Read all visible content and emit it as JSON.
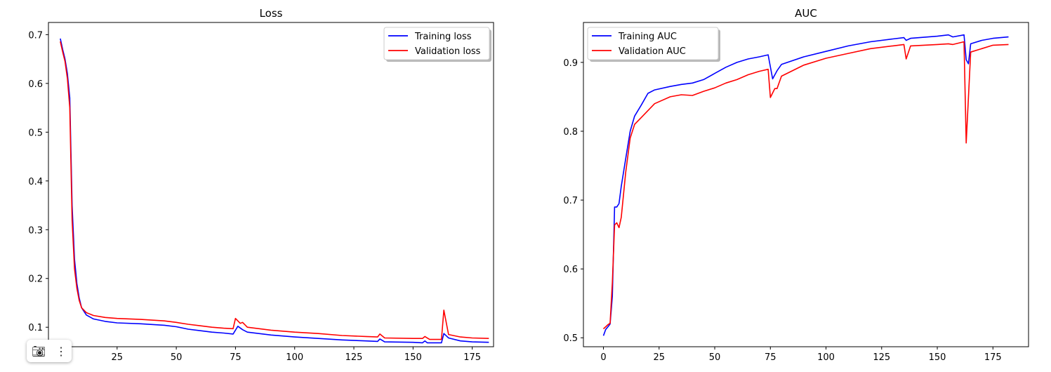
{
  "chart_data": [
    {
      "type": "line",
      "title": "Loss",
      "xlabel": "",
      "ylabel": "",
      "xlim": [
        -4,
        184
      ],
      "ylim": [
        0.06,
        0.725
      ],
      "xticks": [
        0,
        25,
        50,
        75,
        100,
        125,
        150,
        175
      ],
      "yticks": [
        0.1,
        0.2,
        0.3,
        0.4,
        0.5,
        0.6,
        0.7
      ],
      "legend_position": "top-right",
      "series": [
        {
          "name": "Training loss",
          "color": "#0000ff",
          "points": [
            [
              1,
              0.692
            ],
            [
              2,
              0.67
            ],
            [
              3,
              0.65
            ],
            [
              4,
              0.62
            ],
            [
              5,
              0.57
            ],
            [
              6,
              0.35
            ],
            [
              7,
              0.24
            ],
            [
              8,
              0.19
            ],
            [
              9,
              0.16
            ],
            [
              10,
              0.14
            ],
            [
              12,
              0.125
            ],
            [
              15,
              0.117
            ],
            [
              20,
              0.112
            ],
            [
              25,
              0.109
            ],
            [
              35,
              0.107
            ],
            [
              45,
              0.104
            ],
            [
              50,
              0.101
            ],
            [
              55,
              0.096
            ],
            [
              60,
              0.093
            ],
            [
              65,
              0.09
            ],
            [
              70,
              0.088
            ],
            [
              74,
              0.086
            ],
            [
              76,
              0.102
            ],
            [
              78,
              0.095
            ],
            [
              80,
              0.09
            ],
            [
              90,
              0.084
            ],
            [
              100,
              0.08
            ],
            [
              110,
              0.077
            ],
            [
              120,
              0.074
            ],
            [
              130,
              0.072
            ],
            [
              135,
              0.071
            ],
            [
              136,
              0.076
            ],
            [
              138,
              0.07
            ],
            [
              150,
              0.069
            ],
            [
              154,
              0.068
            ],
            [
              155,
              0.072
            ],
            [
              156,
              0.068
            ],
            [
              162,
              0.068
            ],
            [
              163,
              0.087
            ],
            [
              165,
              0.078
            ],
            [
              170,
              0.072
            ],
            [
              175,
              0.07
            ],
            [
              182,
              0.069
            ]
          ]
        },
        {
          "name": "Validation loss",
          "color": "#ff0000",
          "points": [
            [
              1,
              0.686
            ],
            [
              2,
              0.665
            ],
            [
              3,
              0.645
            ],
            [
              4,
              0.61
            ],
            [
              5,
              0.55
            ],
            [
              6,
              0.32
            ],
            [
              7,
              0.22
            ],
            [
              8,
              0.18
            ],
            [
              9,
              0.155
            ],
            [
              10,
              0.14
            ],
            [
              12,
              0.13
            ],
            [
              15,
              0.124
            ],
            [
              20,
              0.12
            ],
            [
              25,
              0.118
            ],
            [
              35,
              0.116
            ],
            [
              45,
              0.113
            ],
            [
              50,
              0.11
            ],
            [
              55,
              0.106
            ],
            [
              60,
              0.103
            ],
            [
              65,
              0.1
            ],
            [
              70,
              0.098
            ],
            [
              74,
              0.097
            ],
            [
              75,
              0.118
            ],
            [
              77,
              0.108
            ],
            [
              78,
              0.11
            ],
            [
              80,
              0.1
            ],
            [
              90,
              0.094
            ],
            [
              100,
              0.09
            ],
            [
              110,
              0.087
            ],
            [
              120,
              0.083
            ],
            [
              130,
              0.081
            ],
            [
              135,
              0.08
            ],
            [
              136,
              0.086
            ],
            [
              138,
              0.078
            ],
            [
              150,
              0.077
            ],
            [
              154,
              0.077
            ],
            [
              155,
              0.081
            ],
            [
              157,
              0.075
            ],
            [
              162,
              0.075
            ],
            [
              163,
              0.135
            ],
            [
              165,
              0.085
            ],
            [
              170,
              0.08
            ],
            [
              175,
              0.078
            ],
            [
              182,
              0.077
            ]
          ]
        }
      ]
    },
    {
      "type": "line",
      "title": "AUC",
      "xlabel": "",
      "ylabel": "",
      "xlim": [
        -9,
        191
      ],
      "ylim": [
        0.487,
        0.958
      ],
      "xticks": [
        0,
        25,
        50,
        75,
        100,
        125,
        150,
        175
      ],
      "yticks": [
        0.5,
        0.6,
        0.7,
        0.8,
        0.9
      ],
      "legend_position": "top-left",
      "series": [
        {
          "name": "Training AUC",
          "color": "#0000ff",
          "points": [
            [
              0,
              0.503
            ],
            [
              1,
              0.512
            ],
            [
              2,
              0.516
            ],
            [
              3,
              0.52
            ],
            [
              4,
              0.56
            ],
            [
              5,
              0.69
            ],
            [
              6,
              0.69
            ],
            [
              7,
              0.695
            ],
            [
              8,
              0.72
            ],
            [
              10,
              0.76
            ],
            [
              12,
              0.8
            ],
            [
              14,
              0.822
            ],
            [
              17,
              0.838
            ],
            [
              20,
              0.855
            ],
            [
              23,
              0.86
            ],
            [
              30,
              0.865
            ],
            [
              35,
              0.868
            ],
            [
              40,
              0.87
            ],
            [
              45,
              0.875
            ],
            [
              50,
              0.884
            ],
            [
              55,
              0.893
            ],
            [
              60,
              0.9
            ],
            [
              65,
              0.905
            ],
            [
              70,
              0.908
            ],
            [
              74,
              0.911
            ],
            [
              76,
              0.876
            ],
            [
              78,
              0.888
            ],
            [
              80,
              0.897
            ],
            [
              90,
              0.908
            ],
            [
              100,
              0.916
            ],
            [
              110,
              0.924
            ],
            [
              120,
              0.93
            ],
            [
              130,
              0.934
            ],
            [
              135,
              0.936
            ],
            [
              136,
              0.932
            ],
            [
              138,
              0.935
            ],
            [
              150,
              0.938
            ],
            [
              155,
              0.94
            ],
            [
              157,
              0.937
            ],
            [
              162,
              0.94
            ],
            [
              163,
              0.904
            ],
            [
              164,
              0.898
            ],
            [
              165,
              0.927
            ],
            [
              170,
              0.932
            ],
            [
              175,
              0.935
            ],
            [
              182,
              0.937
            ]
          ]
        },
        {
          "name": "Validation AUC",
          "color": "#ff0000",
          "points": [
            [
              0,
              0.513
            ],
            [
              1,
              0.516
            ],
            [
              2,
              0.519
            ],
            [
              3,
              0.521
            ],
            [
              4,
              0.58
            ],
            [
              5,
              0.664
            ],
            [
              6,
              0.667
            ],
            [
              7,
              0.66
            ],
            [
              8,
              0.675
            ],
            [
              10,
              0.74
            ],
            [
              12,
              0.79
            ],
            [
              14,
              0.81
            ],
            [
              17,
              0.82
            ],
            [
              20,
              0.83
            ],
            [
              23,
              0.84
            ],
            [
              30,
              0.85
            ],
            [
              35,
              0.853
            ],
            [
              40,
              0.852
            ],
            [
              45,
              0.858
            ],
            [
              50,
              0.863
            ],
            [
              55,
              0.87
            ],
            [
              60,
              0.875
            ],
            [
              65,
              0.882
            ],
            [
              70,
              0.887
            ],
            [
              74,
              0.89
            ],
            [
              75,
              0.849
            ],
            [
              77,
              0.862
            ],
            [
              78,
              0.862
            ],
            [
              80,
              0.88
            ],
            [
              90,
              0.896
            ],
            [
              100,
              0.906
            ],
            [
              110,
              0.913
            ],
            [
              120,
              0.92
            ],
            [
              130,
              0.924
            ],
            [
              135,
              0.926
            ],
            [
              136,
              0.905
            ],
            [
              138,
              0.924
            ],
            [
              150,
              0.926
            ],
            [
              155,
              0.927
            ],
            [
              157,
              0.926
            ],
            [
              162,
              0.93
            ],
            [
              163,
              0.783
            ],
            [
              165,
              0.915
            ],
            [
              170,
              0.92
            ],
            [
              175,
              0.925
            ],
            [
              182,
              0.926
            ]
          ]
        }
      ]
    }
  ],
  "toolbar": {
    "camera_icon": "camera-icon",
    "menu_icon": "more-vertical-icon"
  }
}
